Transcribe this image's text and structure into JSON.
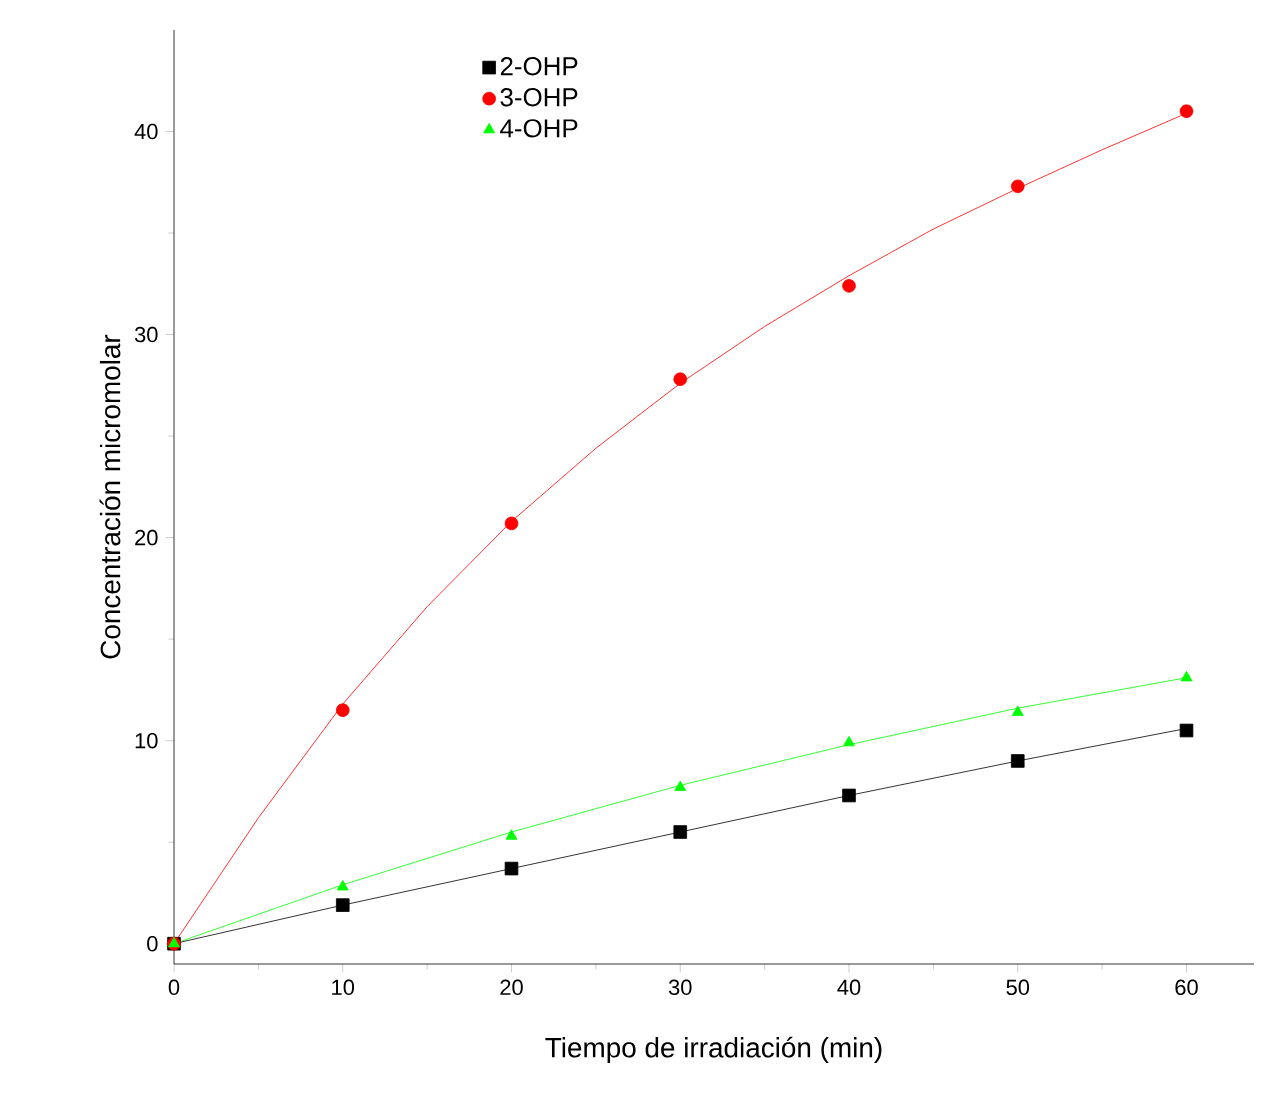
{
  "chart_data": {
    "type": "scatter",
    "xlabel": "Tiempo de irradiación (min)",
    "ylabel": "Concentración micromolar",
    "xlim": [
      0,
      64
    ],
    "ylim": [
      -1,
      45
    ],
    "xticks": [
      0,
      10,
      20,
      30,
      40,
      50,
      60
    ],
    "yticks": [
      0,
      10,
      20,
      30,
      40
    ],
    "legend": "top",
    "grid": false,
    "series": [
      {
        "name": "2-OHP",
        "marker": "square",
        "color": "#000000",
        "x": [
          0,
          10,
          20,
          30,
          40,
          50,
          60
        ],
        "values": [
          0,
          1.9,
          3.7,
          5.5,
          7.3,
          9.0,
          10.5
        ]
      },
      {
        "name": "3-OHP",
        "marker": "circle",
        "color": "#ff0000",
        "x": [
          0,
          10,
          20,
          30,
          40,
          50,
          60
        ],
        "values": [
          0,
          11.5,
          20.7,
          27.8,
          32.4,
          37.3,
          41.0
        ]
      },
      {
        "name": "4-OHP",
        "marker": "triangle",
        "color": "#00ff00",
        "x": [
          0,
          10,
          20,
          30,
          40,
          50,
          60
        ],
        "values": [
          0,
          2.8,
          5.3,
          7.7,
          9.9,
          11.4,
          13.1
        ]
      },
      {
        "type": "line",
        "marker": "none",
        "color": "#000000",
        "x": [
          0,
          10,
          20,
          30,
          40,
          50,
          60
        ],
        "values": [
          0,
          1.9,
          3.7,
          5.5,
          7.3,
          9.0,
          10.6
        ]
      },
      {
        "type": "line",
        "marker": "none",
        "color": "#ff0000",
        "x": [
          0,
          5,
          10,
          15,
          20,
          25,
          30,
          35,
          40,
          45,
          50,
          55,
          60
        ],
        "values": [
          0,
          6.2,
          11.8,
          16.6,
          20.8,
          24.4,
          27.6,
          30.4,
          32.9,
          35.2,
          37.2,
          39.1,
          40.9
        ]
      },
      {
        "type": "line",
        "marker": "none",
        "color": "#00ff00",
        "x": [
          0,
          10,
          20,
          30,
          40,
          50,
          60
        ],
        "values": [
          0,
          2.9,
          5.5,
          7.8,
          9.8,
          11.6,
          13.1
        ]
      }
    ]
  }
}
